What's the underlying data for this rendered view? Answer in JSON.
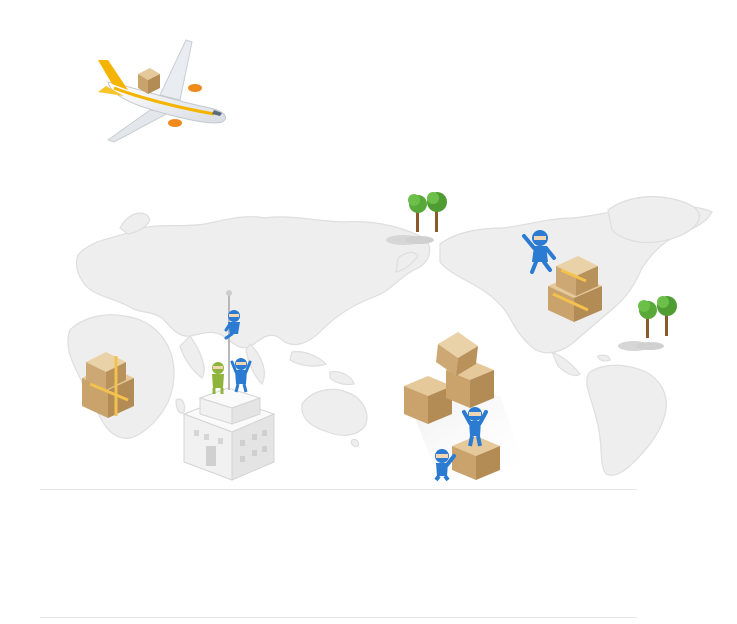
{
  "scene": {
    "colors": {
      "map_land": "#eeeeee",
      "map_edge": "#dddddd",
      "box_top": "#e6c99a",
      "box_front": "#c9a26c",
      "box_side": "#b38b55",
      "tape": "#f2c14e",
      "ninja_blue": "#2a7bd1",
      "ninja_green": "#8fb53c",
      "tree_green": "#58a83a",
      "trunk": "#8a5a2b",
      "plane_body": "#ffffff",
      "plane_tail": "#f5b400",
      "building": "#f7f7f7",
      "divider": "#e6e6e6"
    },
    "icons": [
      "cargo-plane-icon",
      "world-map-icon",
      "tree-icon",
      "cardboard-box-icon",
      "ninja-figure-icon",
      "building-icon",
      "flagpole-icon"
    ]
  }
}
